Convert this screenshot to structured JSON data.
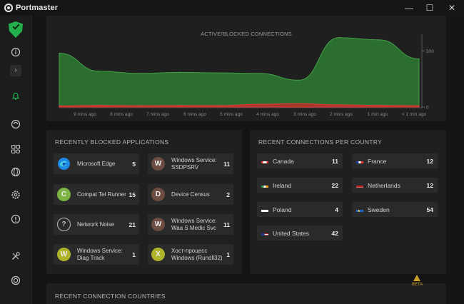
{
  "window": {
    "title": "Portmaster",
    "controls": {
      "minimize": "—",
      "maximize": "☐",
      "close": "✕"
    }
  },
  "sidebar": {
    "icons": [
      "shield-check-icon",
      "info-icon",
      "expand-chevron-icon",
      "bell-icon",
      "spin-icon",
      "apps-grid-icon",
      "globe-icon",
      "settings-gear-icon",
      "help-icon",
      "tools-icon",
      "support-icon"
    ],
    "accent_color": "#22b14c"
  },
  "chart": {
    "title": "ACTIVE/BLOCKED CONNECTIONS",
    "x_ticks": [
      "9 mins ago",
      "8 mins ago",
      "7 mins ago",
      "6 mins ago",
      "5 mins ago",
      "4 mins ago",
      "3 mins ago",
      "2 mins ago",
      "1 min ago",
      "< 1 min ago"
    ],
    "y_ticks": [
      "500",
      "0"
    ]
  },
  "chart_data": {
    "type": "area",
    "title": "ACTIVE/BLOCKED CONNECTIONS",
    "categories": [
      "9 mins ago",
      "8 mins ago",
      "7 mins ago",
      "6 mins ago",
      "5 mins ago",
      "4 mins ago",
      "3 mins ago",
      "2 mins ago",
      "1 min ago",
      "< 1 min ago"
    ],
    "ylim": [
      0,
      650
    ],
    "series": [
      {
        "color": "#2e7d32",
        "values": [
          480,
          320,
          300,
          310,
          305,
          300,
          240,
          620,
          600,
          430
        ]
      },
      {
        "color": "#c62828",
        "values": [
          10,
          15,
          12,
          14,
          13,
          25,
          30,
          20,
          15,
          12
        ]
      }
    ],
    "legend": "none",
    "grid": false
  },
  "apps": {
    "title": "RECENTLY BLOCKED APPLICATIONS",
    "items": [
      {
        "name": "Microsoft Edge",
        "count": "5",
        "icon": "edge-icon",
        "letter": "",
        "color": "#1e88e5"
      },
      {
        "name": "Windows Service: SSDPSRV",
        "count": "11",
        "icon": "letter-w-icon",
        "letter": "W",
        "color": "#6d4c41"
      },
      {
        "name": "Compat Tel Runner",
        "count": "15",
        "icon": "letter-c-icon",
        "letter": "C",
        "color": "#7cb342"
      },
      {
        "name": "Device Census",
        "count": "2",
        "icon": "letter-d-icon",
        "letter": "D",
        "color": "#6d4c41"
      },
      {
        "name": "Network Noise",
        "count": "21",
        "icon": "question-icon",
        "letter": "?",
        "color": "#3a3a3a"
      },
      {
        "name": "Windows Service: Waa S Medic Svc",
        "count": "11",
        "icon": "letter-w-icon",
        "letter": "W",
        "color": "#6d4c41"
      },
      {
        "name": "Windows Service: Diag Track",
        "count": "1",
        "icon": "letter-w-icon",
        "letter": "W",
        "color": "#afb42b"
      },
      {
        "name": "Хост-процесс Windows (Rundll32)",
        "count": "1",
        "icon": "letter-x-icon",
        "letter": "X",
        "color": "#afb42b"
      }
    ]
  },
  "countries": {
    "title": "RECENT CONNECTIONS PER COUNTRY",
    "items": [
      {
        "name": "Canada",
        "count": "11",
        "flag": "canada-flag-icon"
      },
      {
        "name": "France",
        "count": "12",
        "flag": "france-flag-icon"
      },
      {
        "name": "Ireland",
        "count": "22",
        "flag": "ireland-flag-icon"
      },
      {
        "name": "Netherlands",
        "count": "12",
        "flag": "netherlands-flag-icon"
      },
      {
        "name": "Poland",
        "count": "4",
        "flag": "poland-flag-icon"
      },
      {
        "name": "Sweden",
        "count": "54",
        "flag": "sweden-flag-icon"
      },
      {
        "name": "United States",
        "count": "42",
        "flag": "usa-flag-icon"
      }
    ]
  },
  "recent_countries": {
    "title": "RECENT CONNECTION COUNTRIES",
    "beta_label": "BETA"
  }
}
